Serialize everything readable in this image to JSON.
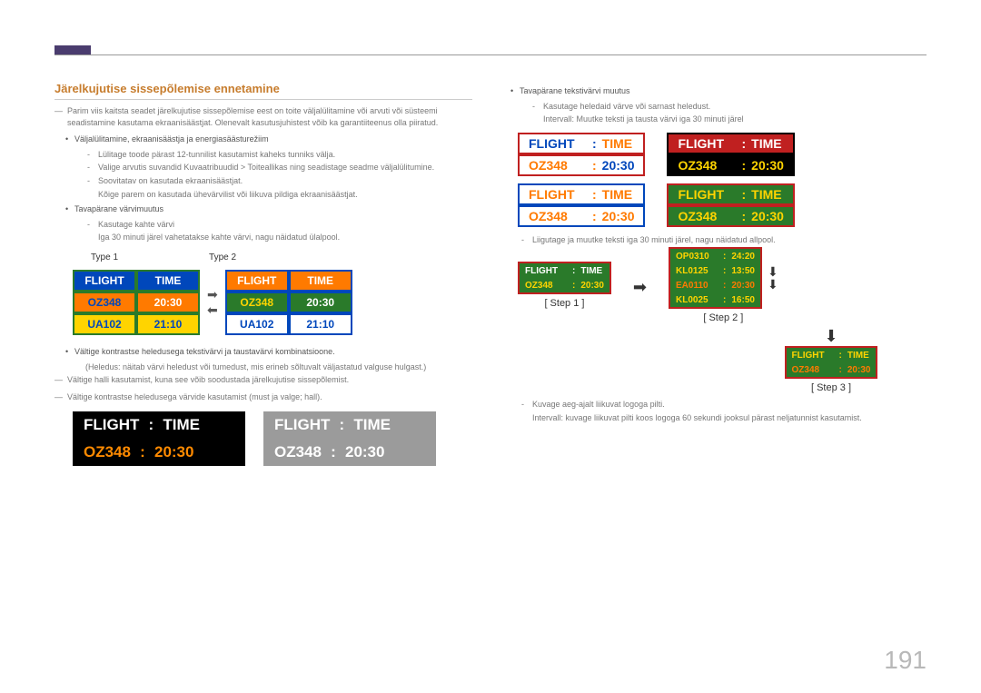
{
  "section_title": "Järelkujutise sissepõlemise ennetamine",
  "intro": "Parim viis kaitsta seadet järelkujutise sissepõlemise eest on toite väljalülitamine või arvuti või süsteemi seadistamine kasutama ekraanisäästjat. Olenevalt kasutusjuhistest võib ka garantiiteenus olla piiratud.",
  "bullets_left": [
    {
      "text": "Väljalülitamine, ekraanisäästja ja energiasäästurežiim",
      "subs": [
        "Lülitage toode pärast 12-tunnilist kasutamist kaheks tunniks välja.",
        "Valige arvutis suvandid Kuvaatribuudid > Toiteallikas ning seadistage seadme väljalülitumine.",
        "Soovitatav on kasutada ekraanisäästjat."
      ],
      "tail": "Kõige parem on kasutada ühevärvilist või liikuva pildiga ekraanisäästjat."
    },
    {
      "text": "Tavapärane värvimuutus",
      "subs": [
        "Kasutage kahte värvi"
      ],
      "tail": "Iga 30 minuti järel vahetatakse kahte värvi, nagu näidatud ülalpool."
    }
  ],
  "type_labels": [
    "Type 1",
    "Type 2"
  ],
  "flight_tables": {
    "type1": {
      "border": "#2a7a2a",
      "hdr_bg": "#0047bb",
      "hdr_fg": "#ffffff",
      "r1_bg": "#ff7a00",
      "r1_lbl_fg": "#0047bb",
      "r1_val_fg": "#ffffff",
      "r2_bg": "#ffd400",
      "r2_fg": "#0047bb",
      "hdr": [
        "FLIGHT",
        "TIME"
      ],
      "r1": [
        "OZ348",
        "20:30"
      ],
      "r2": [
        "UA102",
        "21:10"
      ]
    },
    "type2": {
      "border": "#0047bb",
      "hdr_bg": "#ff7a00",
      "hdr_fg": "#ffffff",
      "r1_bg": "#2a7a2a",
      "r1_lbl_fg": "#ffd400",
      "r1_val_fg": "#ffffff",
      "r2_bg": "#ffffff",
      "r2_fg": "#0047bb",
      "hdr": [
        "FLIGHT",
        "TIME"
      ],
      "r1": [
        "OZ348",
        "20:30"
      ],
      "r2": [
        "UA102",
        "21:10"
      ]
    }
  },
  "mid_bullet": "Vältige kontrastse heledusega tekstivärvi ja taustavärvi kombinatsioone.",
  "mid_sub": "(Heledus: näitab värvi heledust või tumedust, mis erineb sõltuvalt väljastatud valguse hulgast.)",
  "dash1": "Vältige halli kasutamist, kuna see võib soodustada järelkujutise sissepõlemist.",
  "dash2": "Vältige kontrastse heledusega värvide kasutamist (must ja valge; hall).",
  "big_panels": {
    "a": {
      "bg": "#000000",
      "fg": "#ffffff",
      "ofg": "#ff8a00",
      "rows": [
        [
          "FLIGHT",
          "TIME"
        ],
        [
          "OZ348",
          "20:30"
        ]
      ]
    },
    "b": {
      "bg": "#9b9b9b",
      "fg": "#ffffff",
      "ofg": "#ffffff",
      "rows": [
        [
          "FLIGHT",
          "TIME"
        ],
        [
          "OZ348",
          "20:30"
        ]
      ]
    }
  },
  "right_top_bullet": "Tavapärane tekstivärvi muutus",
  "right_top_sub": "Kasutage heledaid värve või sarnast heledust.",
  "right_top_tail": "Intervall: Muutke teksti ja tausta värvi iga 30 minuti järel",
  "panels4": {
    "p1": {
      "border": "#c02020",
      "rows": [
        {
          "bg": "#ffffff",
          "lbl_fg": "#0047bb",
          "val_fg": "#ff7a00",
          "lbl": "FLIGHT",
          "val": "TIME"
        },
        {
          "bg": "#ffffff",
          "lbl_fg": "#ff7a00",
          "val_fg": "#0047bb",
          "lbl": "OZ348",
          "val": "20:30"
        }
      ]
    },
    "p2": {
      "border": "#000000",
      "rows": [
        {
          "bg": "#c02020",
          "lbl_fg": "#ffffff",
          "val_fg": "#ffffff",
          "lbl": "FLIGHT",
          "val": "TIME"
        },
        {
          "bg": "#000000",
          "lbl_fg": "#ffd400",
          "val_fg": "#ffd400",
          "lbl": "OZ348",
          "val": "20:30"
        }
      ]
    },
    "p3": {
      "border": "#0047bb",
      "rows": [
        {
          "bg": "#ffffff",
          "lbl_fg": "#ff7a00",
          "val_fg": "#ff7a00",
          "lbl": "FLIGHT",
          "val": "TIME"
        },
        {
          "bg": "#ffffff",
          "lbl_fg": "#ff7a00",
          "val_fg": "#ff7a00",
          "lbl": "OZ348",
          "val": "20:30"
        }
      ]
    },
    "p4": {
      "border": "#c02020",
      "rows": [
        {
          "bg": "#2a7a2a",
          "lbl_fg": "#ffd400",
          "val_fg": "#ffd400",
          "lbl": "FLIGHT",
          "val": "TIME"
        },
        {
          "bg": "#2a7a2a",
          "lbl_fg": "#ffd400",
          "val_fg": "#ffd400",
          "lbl": "OZ348",
          "val": "20:30"
        }
      ]
    }
  },
  "scroll_note": "Liigutage ja muutke teksti iga 30 minuti järel, nagu näidatud allpool.",
  "step_labels": [
    "[ Step 1 ]",
    "[ Step 2 ]",
    "[ Step 3 ]"
  ],
  "step1_panel": {
    "bg": "#2a7a2a",
    "border": "#c02020",
    "rows": [
      {
        "lbl": "FLIGHT",
        "val": "TIME",
        "lbl_fg": "#ffffff",
        "val_fg": "#ffffff"
      },
      {
        "lbl": "OZ348",
        "val": "20:30",
        "lbl_fg": "#ffd400",
        "val_fg": "#ffd400"
      }
    ]
  },
  "step2_rows": [
    {
      "lbl": "OP0310",
      "val": "24:20",
      "fg": "#ffd400"
    },
    {
      "lbl": "KL0125",
      "val": "13:50",
      "fg": "#ffd400"
    },
    {
      "lbl": "EA0110",
      "val": "20:30",
      "fg": "#ff7a00"
    },
    {
      "lbl": "KL0025",
      "val": "16:50",
      "fg": "#ffd400"
    }
  ],
  "step2_bg": "#2a7a2a",
  "step2_border": "#c02020",
  "step3_panel": {
    "bg": "#2a7a2a",
    "border": "#c02020",
    "rows": [
      {
        "lbl": "FLIGHT",
        "val": "TIME",
        "lbl_fg": "#ffd400",
        "val_fg": "#ffd400"
      },
      {
        "lbl": "OZ348",
        "val": "20:30",
        "lbl_fg": "#ff7a00",
        "val_fg": "#ff7a00"
      }
    ]
  },
  "right_bottom_sub": "Kuvage aeg-ajalt liikuvat logoga pilti.",
  "right_bottom_tail": "Intervall: kuvage liikuvat pilti koos logoga 60 sekundi jooksul pärast neljatunnist kasutamist.",
  "page_num": "191"
}
